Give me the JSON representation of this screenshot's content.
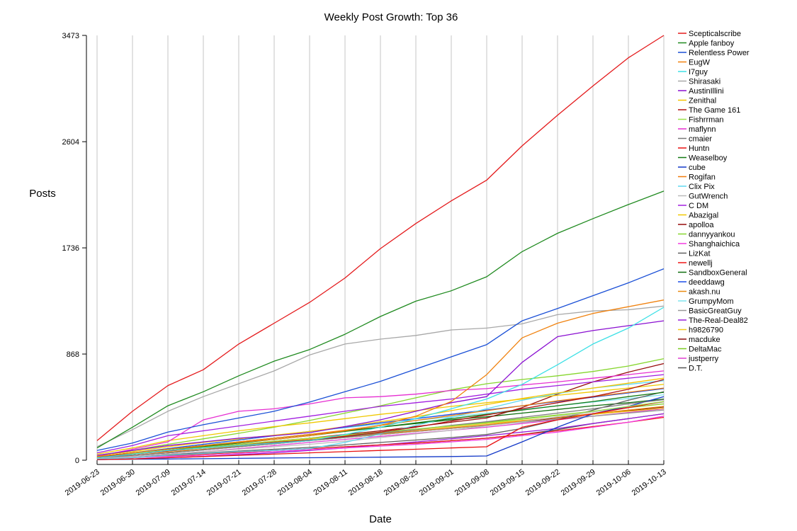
{
  "chart_data": {
    "type": "line",
    "title": "Weekly Post Growth: Top 36",
    "xlabel": "Date",
    "ylabel": "Posts",
    "x": [
      "2019-06-23",
      "2019-06-30",
      "2019-07-09",
      "2019-07-14",
      "2019-07-21",
      "2019-07-28",
      "2019-08-04",
      "2019-08-11",
      "2019-08-18",
      "2019-08-25",
      "2019-09-01",
      "2019-09-08",
      "2019-09-15",
      "2019-09-22",
      "2019-09-29",
      "2019-10-06",
      "2019-10-13"
    ],
    "yticks": [
      "0",
      "868",
      "1736",
      "2604",
      "3473"
    ],
    "ylim": [
      0,
      3473
    ],
    "grid": "vertical",
    "legend_position": "right",
    "series": [
      {
        "name": "Scepticalscribe",
        "color": "#e41a1c",
        "values": [
          160,
          400,
          610,
          740,
          950,
          1120,
          1290,
          1490,
          1730,
          1935,
          2120,
          2290,
          2570,
          2820,
          3060,
          3290,
          3473
        ]
      },
      {
        "name": "Apple fanboy",
        "color": "#1f8a1f",
        "values": [
          100,
          270,
          445,
          560,
          690,
          810,
          905,
          1030,
          1175,
          1300,
          1385,
          1500,
          1705,
          1855,
          1975,
          2090,
          2200
        ]
      },
      {
        "name": "Relentless Power",
        "color": "#1a4fd6",
        "values": [
          80,
          140,
          230,
          290,
          345,
          400,
          475,
          560,
          645,
          745,
          845,
          945,
          1140,
          1240,
          1345,
          1450,
          1565
        ]
      },
      {
        "name": "EugW",
        "color": "#f0820f",
        "values": [
          30,
          60,
          90,
          120,
          145,
          170,
          200,
          240,
          285,
          360,
          480,
          700,
          1000,
          1120,
          1200,
          1255,
          1310
        ]
      },
      {
        "name": "I7guy",
        "color": "#3de0e6",
        "values": [
          20,
          50,
          80,
          100,
          120,
          140,
          160,
          210,
          270,
          340,
          420,
          500,
          620,
          780,
          950,
          1080,
          1250
        ]
      },
      {
        "name": "Shirasaki",
        "color": "#a8a8a8",
        "values": [
          110,
          250,
          400,
          520,
          625,
          730,
          860,
          950,
          990,
          1020,
          1065,
          1080,
          1115,
          1190,
          1220,
          1230,
          1260
        ]
      },
      {
        "name": "AustinIllini",
        "color": "#8a0fd1",
        "values": [
          40,
          80,
          120,
          150,
          180,
          200,
          225,
          275,
          330,
          400,
          470,
          520,
          800,
          1010,
          1060,
          1100,
          1140
        ]
      },
      {
        "name": "Zenithal",
        "color": "#f5c400",
        "values": [
          40,
          70,
          110,
          145,
          175,
          205,
          235,
          275,
          315,
          355,
          405,
          455,
          505,
          550,
          590,
          630,
          670
        ]
      },
      {
        "name": "The Game 161",
        "color": "#b01010",
        "values": [
          30,
          50,
          75,
          100,
          120,
          145,
          165,
          195,
          230,
          270,
          320,
          370,
          420,
          470,
          520,
          580,
          660
        ]
      },
      {
        "name": "Fishrrman",
        "color": "#9de04a",
        "values": [
          30,
          55,
          80,
          105,
          130,
          155,
          180,
          205,
          230,
          255,
          280,
          305,
          335,
          365,
          400,
          440,
          480
        ]
      },
      {
        "name": "maflynn",
        "color": "#e62ed1",
        "values": [
          30,
          90,
          150,
          330,
          400,
          420,
          460,
          510,
          520,
          540,
          570,
          585,
          615,
          640,
          670,
          700,
          730
        ]
      },
      {
        "name": "cmaier",
        "color": "#7a7a7a",
        "values": [
          20,
          40,
          60,
          85,
          110,
          135,
          160,
          190,
          220,
          250,
          285,
          315,
          350,
          385,
          420,
          460,
          495
        ]
      },
      {
        "name": "Huntn",
        "color": "#e81010",
        "values": [
          5,
          10,
          20,
          30,
          40,
          50,
          60,
          70,
          80,
          90,
          100,
          110,
          270,
          330,
          380,
          430,
          480
        ]
      },
      {
        "name": "Weaselboy",
        "color": "#147a14",
        "values": [
          20,
          50,
          80,
          110,
          140,
          170,
          200,
          235,
          270,
          305,
          340,
          375,
          410,
          445,
          480,
          520,
          555
        ]
      },
      {
        "name": "cube",
        "color": "#1238c8",
        "values": [
          5,
          8,
          10,
          12,
          15,
          18,
          20,
          22,
          25,
          27,
          30,
          35,
          150,
          270,
          380,
          440,
          520
        ]
      },
      {
        "name": "Rogifan",
        "color": "#f07a0a",
        "values": [
          20,
          50,
          80,
          115,
          150,
          180,
          210,
          245,
          285,
          325,
          365,
          405,
          445,
          485,
          520,
          555,
          590
        ]
      },
      {
        "name": "Clix Pix",
        "color": "#5fd8f0",
        "values": [
          10,
          20,
          40,
          55,
          70,
          80,
          95,
          145,
          215,
          285,
          350,
          420,
          490,
          545,
          590,
          620,
          650
        ]
      },
      {
        "name": "GutWrench",
        "color": "#bcbcbc",
        "values": [
          15,
          30,
          50,
          70,
          90,
          110,
          130,
          155,
          185,
          215,
          245,
          280,
          315,
          355,
          395,
          435,
          475
        ]
      },
      {
        "name": "C DM",
        "color": "#a21fe0",
        "values": [
          60,
          120,
          200,
          240,
          280,
          320,
          360,
          400,
          440,
          470,
          500,
          540,
          580,
          610,
          640,
          670,
          700
        ]
      },
      {
        "name": "Abazigal",
        "color": "#f0c800",
        "values": [
          50,
          100,
          160,
          200,
          240,
          275,
          305,
          340,
          375,
          405,
          440,
          470,
          500,
          530,
          560,
          590,
          620
        ]
      },
      {
        "name": "apolloa",
        "color": "#960a0a",
        "values": [
          25,
          50,
          80,
          105,
          130,
          155,
          180,
          210,
          240,
          275,
          310,
          345,
          430,
          540,
          640,
          720,
          790
        ]
      },
      {
        "name": "dannyyankou",
        "color": "#86d62e",
        "values": [
          40,
          80,
          130,
          175,
          220,
          270,
          325,
          385,
          445,
          510,
          575,
          625,
          660,
          690,
          725,
          770,
          830
        ]
      },
      {
        "name": "Shanghaichica",
        "color": "#f23ae0",
        "values": [
          10,
          20,
          30,
          40,
          55,
          70,
          85,
          100,
          115,
          130,
          150,
          170,
          200,
          230,
          270,
          310,
          360
        ]
      },
      {
        "name": "LizKat",
        "color": "#606060",
        "values": [
          15,
          30,
          45,
          60,
          75,
          90,
          105,
          125,
          145,
          165,
          185,
          210,
          260,
          330,
          410,
          490,
          560
        ]
      },
      {
        "name": "newellj",
        "color": "#ef1515",
        "values": [
          10,
          20,
          35,
          50,
          65,
          80,
          95,
          110,
          125,
          140,
          160,
          180,
          210,
          240,
          275,
          310,
          350
        ]
      },
      {
        "name": "SandboxGeneral",
        "color": "#0f6e0f",
        "values": [
          30,
          60,
          90,
          120,
          150,
          180,
          210,
          240,
          270,
          300,
          330,
          355,
          385,
          415,
          445,
          470,
          500
        ]
      },
      {
        "name": "deeddawg",
        "color": "#1a4ee8",
        "values": [
          30,
          60,
          95,
          130,
          165,
          200,
          235,
          270,
          305,
          340,
          375,
          410,
          445,
          480,
          515,
          550,
          585
        ]
      },
      {
        "name": "akash.nu",
        "color": "#e88a10",
        "values": [
          20,
          40,
          65,
          90,
          115,
          140,
          165,
          190,
          215,
          240,
          265,
          290,
          320,
          350,
          380,
          410,
          440
        ]
      },
      {
        "name": "GrumpyMom",
        "color": "#7fe4ee",
        "values": [
          30,
          60,
          95,
          130,
          165,
          200,
          235,
          265,
          295,
          325,
          355,
          385,
          415,
          445,
          475,
          505,
          535
        ]
      },
      {
        "name": "BasicGreatGuy",
        "color": "#999999",
        "values": [
          20,
          40,
          60,
          85,
          110,
          135,
          160,
          185,
          210,
          235,
          260,
          285,
          310,
          335,
          360,
          385,
          410
        ]
      },
      {
        "name": "The-Real-Deal82",
        "color": "#9920d8",
        "values": [
          5,
          10,
          20,
          30,
          45,
          60,
          80,
          100,
          125,
          150,
          175,
          200,
          230,
          260,
          300,
          340,
          380
        ]
      },
      {
        "name": "h9826790",
        "color": "#f2cc1a",
        "values": [
          25,
          50,
          75,
          100,
          125,
          150,
          175,
          200,
          225,
          250,
          275,
          300,
          325,
          350,
          375,
          400,
          425
        ]
      },
      {
        "name": "macduke",
        "color": "#8c0c0c",
        "values": [
          20,
          40,
          60,
          85,
          110,
          135,
          160,
          185,
          210,
          235,
          260,
          285,
          315,
          345,
          375,
          405,
          435
        ]
      },
      {
        "name": "DeltaMac",
        "color": "#7ccc22",
        "values": [
          25,
          50,
          75,
          100,
          125,
          150,
          175,
          200,
          225,
          250,
          280,
          310,
          340,
          370,
          400,
          430,
          460
        ]
      },
      {
        "name": "justperry",
        "color": "#e040d0",
        "values": [
          15,
          30,
          50,
          70,
          95,
          120,
          145,
          170,
          195,
          220,
          245,
          270,
          300,
          330,
          360,
          390,
          420
        ]
      },
      {
        "name": "D.T.",
        "color": "#555555",
        "values": [
          10,
          20,
          35,
          50,
          65,
          80,
          95,
          110,
          125,
          140,
          160,
          180,
          210,
          250,
          300,
          340,
          380
        ]
      }
    ]
  }
}
